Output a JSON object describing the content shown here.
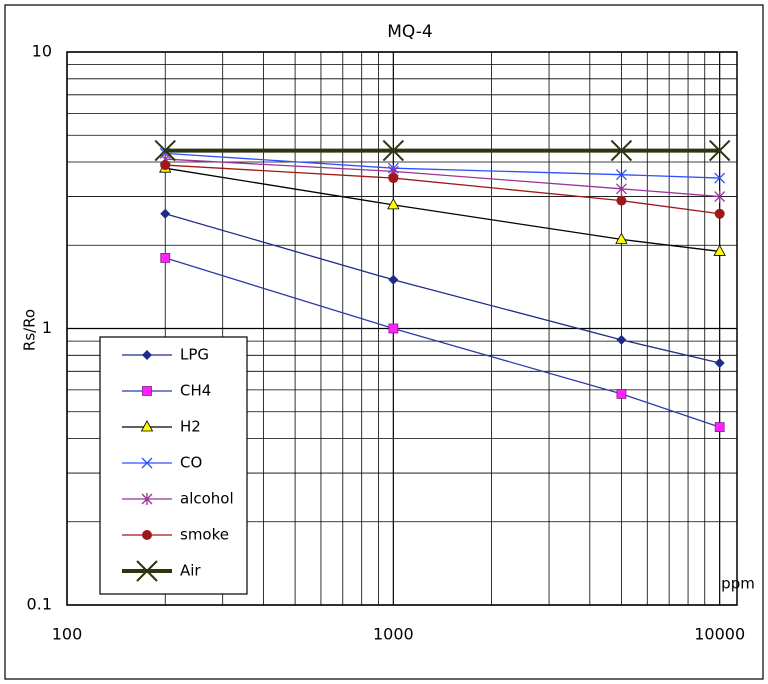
{
  "chart_data": {
    "type": "line",
    "title": "MQ-4",
    "y_label": "Rs/Ro",
    "x_unit": "ppm",
    "x_scale": "log",
    "y_scale": "log",
    "grid": true,
    "legend": "lower left",
    "xlim": [
      100,
      11300
    ],
    "ylim": [
      0.1,
      10
    ],
    "xticks": [
      100,
      1000,
      10000
    ],
    "yticks": [
      0.1,
      1,
      10
    ],
    "xminorticks": [
      200,
      300,
      400,
      500,
      600,
      700,
      800,
      900,
      2000,
      3000,
      4000,
      5000,
      6000,
      7000,
      8000,
      9000
    ],
    "yminorticks": [
      0.2,
      0.3,
      0.4,
      0.5,
      0.6,
      0.7,
      0.8,
      0.9,
      2,
      3,
      4,
      5,
      6,
      7,
      8,
      9
    ],
    "x": [
      200,
      1000,
      5000,
      10000
    ],
    "series": [
      {
        "name": "LPG",
        "color": "#1f2a8c",
        "marker": "diamond",
        "marker_color": "#1f2a8c",
        "values": [
          2.6,
          1.5,
          0.91,
          0.75
        ]
      },
      {
        "name": "CH4",
        "color": "#2f3aa8",
        "marker": "square",
        "marker_color": "#ff22ff",
        "values": [
          1.8,
          1.0,
          0.58,
          0.44
        ]
      },
      {
        "name": "H2",
        "color": "#000000",
        "marker": "triangle",
        "marker_color": "#ffff00",
        "values": [
          3.8,
          2.8,
          2.1,
          1.9
        ]
      },
      {
        "name": "CO",
        "color": "#3050ff",
        "marker": "x",
        "marker_color": "#3050ff",
        "values": [
          4.3,
          3.8,
          3.6,
          3.5
        ]
      },
      {
        "name": "alcohol",
        "color": "#993399",
        "marker": "star",
        "marker_color": "#993399",
        "values": [
          4.1,
          3.7,
          3.2,
          3.0
        ]
      },
      {
        "name": "smoke",
        "color": "#a01818",
        "marker": "circle",
        "marker_color": "#a01818",
        "values": [
          3.9,
          3.5,
          2.9,
          2.6
        ]
      },
      {
        "name": "Air",
        "color": "#2e3310",
        "marker": "bigx",
        "marker_color": "#2e3310",
        "line_width": 4,
        "values": [
          4.4,
          4.4,
          4.4,
          4.4
        ]
      }
    ]
  }
}
